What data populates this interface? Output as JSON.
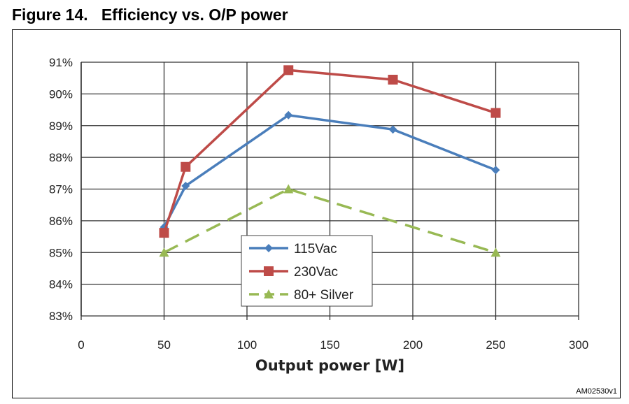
{
  "figure_label": "Figure 14.",
  "figure_title": "Efficiency vs. O/P power",
  "doc_code": "AM02530v1",
  "chart_data": {
    "type": "line",
    "title": "",
    "xlabel": "Output power [W]",
    "ylabel": "",
    "xlim": [
      0,
      300
    ],
    "ylim": [
      83,
      91
    ],
    "xticks": [
      "0",
      "50",
      "100",
      "150",
      "200",
      "250",
      "300"
    ],
    "yticks": [
      "83%",
      "84%",
      "85%",
      "86%",
      "87%",
      "88%",
      "89%",
      "90%",
      "91%"
    ],
    "grid": true,
    "legend_placement": "center-bottom",
    "series": [
      {
        "name": "115Vac",
        "color": "#4a7ebb",
        "marker": "diamond",
        "dash": false,
        "x": [
          50,
          63,
          125,
          188,
          250
        ],
        "y": [
          85.8,
          87.1,
          89.33,
          88.88,
          87.6
        ]
      },
      {
        "name": "230Vac",
        "color": "#be4b48",
        "marker": "square",
        "dash": false,
        "x": [
          50,
          63,
          125,
          188,
          250
        ],
        "y": [
          85.62,
          87.7,
          90.75,
          90.45,
          89.4
        ]
      },
      {
        "name": "80+ Silver",
        "color": "#98b954",
        "marker": "triangle",
        "dash": true,
        "x": [
          50,
          125,
          250
        ],
        "y": [
          85,
          87,
          85
        ]
      }
    ]
  }
}
